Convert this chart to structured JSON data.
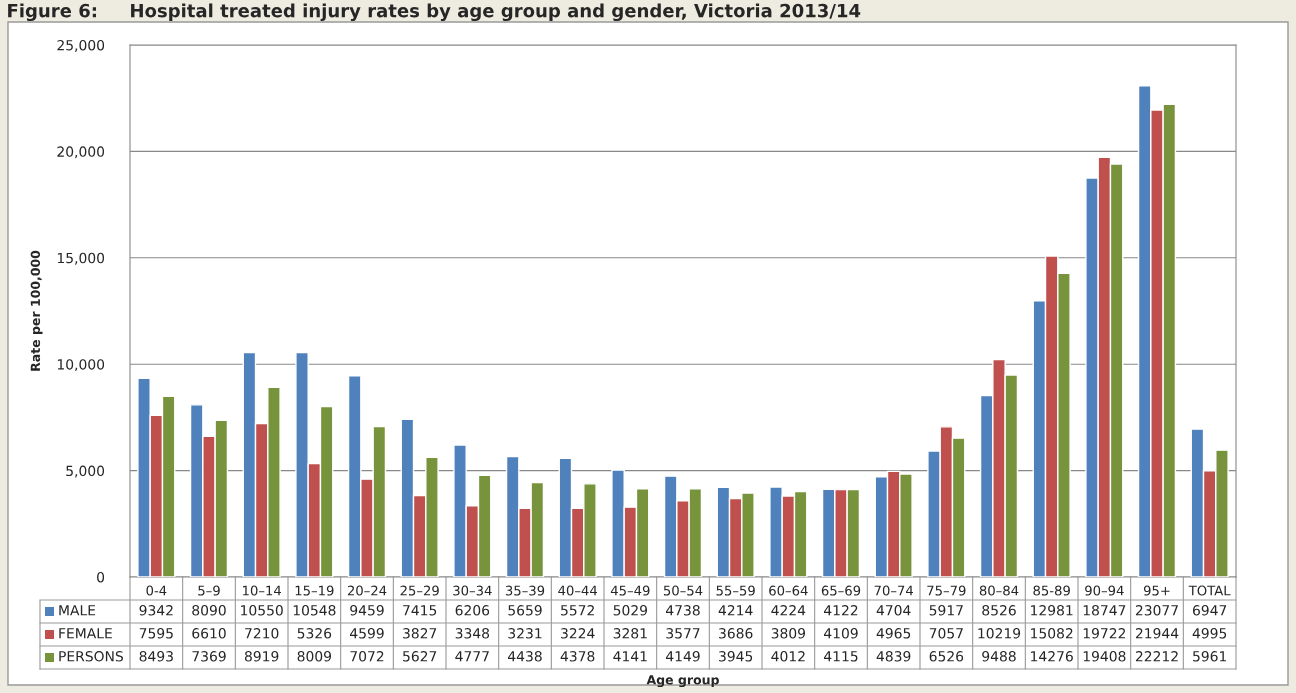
{
  "chart_data": {
    "type": "bar",
    "title": "Figure 6:     Hospital treated injury rates by age group and gender, Victoria 2013/14",
    "annotations": [
      "Age group"
    ],
    "ylabel": "Rate per 100,000",
    "categories": [
      "0-4",
      "5–9",
      "10–14",
      "15–19",
      "20–24",
      "25–29",
      "30–34",
      "35–39",
      "40–44",
      "45–49",
      "50–54",
      "55–59",
      "60–64",
      "65–69",
      "70–74",
      "75–79",
      "80–84",
      "85-89",
      "90–94",
      "95+",
      "TOTAL"
    ],
    "series": [
      {
        "name": "MALE",
        "color": "#4f81bd",
        "values": [
          9342,
          8090,
          10550,
          10548,
          9459,
          7415,
          6206,
          5659,
          5572,
          5029,
          4738,
          4214,
          4224,
          4122,
          4704,
          5917,
          8526,
          12981,
          18747,
          23077,
          6947
        ]
      },
      {
        "name": "FEMALE",
        "color": "#c0504d",
        "values": [
          7595,
          6610,
          7210,
          5326,
          4599,
          3827,
          3348,
          3231,
          3224,
          3281,
          3577,
          3686,
          3809,
          4109,
          4965,
          7057,
          10219,
          15082,
          19722,
          21944,
          4995
        ]
      },
      {
        "name": "PERSONS",
        "color": "#77933c",
        "values": [
          8493,
          7369,
          8919,
          8009,
          7072,
          5627,
          4777,
          4438,
          4378,
          4141,
          4149,
          3945,
          4012,
          4115,
          4839,
          6526,
          9488,
          14276,
          19408,
          22212,
          5961
        ]
      }
    ],
    "ylim": [
      0,
      25000
    ],
    "yticks": [
      {
        "value": 0,
        "label": "0"
      },
      {
        "value": 5000,
        "label": "5,000"
      },
      {
        "value": 10000,
        "label": "10,000"
      },
      {
        "value": 15000,
        "label": "15,000"
      },
      {
        "value": 20000,
        "label": "20,000"
      },
      {
        "value": 25000,
        "label": "25,000"
      }
    ],
    "grid": "y",
    "legend": "bottom",
    "data_labels": true
  }
}
